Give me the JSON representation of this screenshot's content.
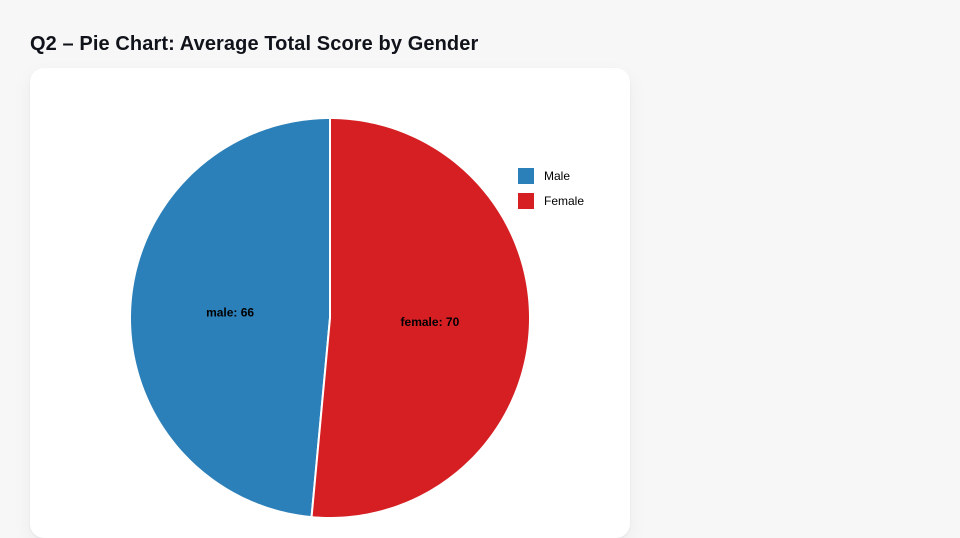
{
  "page": {
    "title": "Q2 – Pie Chart: Average Total Score by Gender",
    "background_color": "#f7f7f8",
    "card_color": "#ffffff"
  },
  "chart_data": {
    "type": "pie",
    "title": "Q2 – Pie Chart: Average Total Score by Gender",
    "categories": [
      "Male",
      "Female"
    ],
    "values": [
      66,
      70
    ],
    "slice_labels": [
      "male: 66",
      "female: 70"
    ],
    "colors": [
      "#2c80b9",
      "#d51f23"
    ],
    "start_angle_deg": 90,
    "direction": "counterclockwise",
    "slice_label_color": "#000000",
    "label_radius_fraction": 0.5,
    "legend": {
      "position": "upper right",
      "entries": [
        "Male",
        "Female"
      ]
    }
  }
}
